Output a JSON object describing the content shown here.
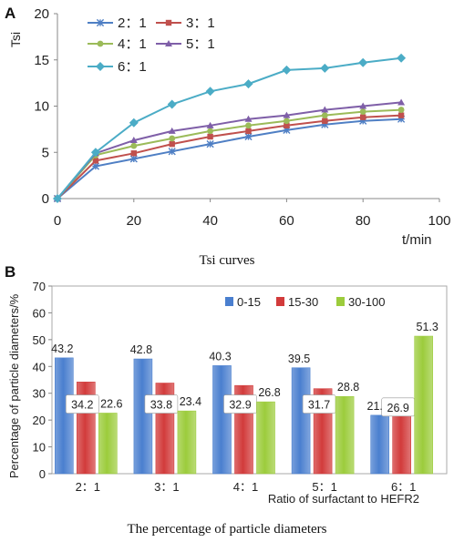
{
  "chart_data": [
    {
      "type": "line",
      "panel": "A",
      "caption": "Tsi curves",
      "xlabel": "t/min",
      "ylabel": "Tsi",
      "xlim": [
        0,
        100
      ],
      "ylim": [
        0,
        20
      ],
      "xticks": [
        0,
        20,
        40,
        60,
        80,
        100
      ],
      "yticks": [
        0,
        5,
        10,
        15,
        20
      ],
      "legend_position": "top-left",
      "x": [
        0,
        10,
        20,
        30,
        40,
        50,
        60,
        70,
        80,
        90
      ],
      "series": [
        {
          "name": "2：1",
          "color": "#4f7fc4",
          "marker": "star",
          "values": [
            0,
            3.5,
            4.3,
            5.1,
            5.9,
            6.7,
            7.4,
            8.0,
            8.4,
            8.6
          ]
        },
        {
          "name": "3：1",
          "color": "#c0504d",
          "marker": "square",
          "values": [
            0,
            4.1,
            4.9,
            5.9,
            6.7,
            7.3,
            7.9,
            8.4,
            8.8,
            9.0
          ]
        },
        {
          "name": "4：1",
          "color": "#9bbb59",
          "marker": "circle",
          "values": [
            0,
            4.7,
            5.7,
            6.5,
            7.3,
            7.9,
            8.4,
            9.0,
            9.4,
            9.6
          ]
        },
        {
          "name": "5：1",
          "color": "#7f5fa8",
          "marker": "triangle",
          "values": [
            0,
            4.9,
            6.3,
            7.3,
            7.9,
            8.6,
            9.0,
            9.6,
            10.0,
            10.4
          ]
        },
        {
          "name": "6：1",
          "color": "#4bacc6",
          "marker": "diamond",
          "values": [
            0,
            5.0,
            8.2,
            10.2,
            11.6,
            12.4,
            13.9,
            14.1,
            14.7,
            15.2
          ]
        }
      ]
    },
    {
      "type": "bar",
      "panel": "B",
      "caption": "The percentage of particle diameters",
      "xlabel": "Ratio of surfactant to HEFR2",
      "ylabel": "Percentage of particle diameters/%",
      "ylim": [
        0,
        70
      ],
      "yticks": [
        0,
        10,
        20,
        30,
        40,
        50,
        60,
        70
      ],
      "legend_position": "top-right",
      "categories": [
        "2：1",
        "3：1",
        "4：1",
        "5：1",
        "6：1"
      ],
      "series": [
        {
          "name": "0-15",
          "color": "#4a7fcf",
          "values": [
            43.2,
            42.8,
            40.3,
            39.5,
            21.8
          ]
        },
        {
          "name": "15-30",
          "color": "#d23b3b",
          "values": [
            34.2,
            33.8,
            32.9,
            31.7,
            26.9
          ]
        },
        {
          "name": "30-100",
          "color": "#9ccc3c",
          "values": [
            22.6,
            23.4,
            26.8,
            28.8,
            51.3
          ]
        }
      ]
    }
  ]
}
